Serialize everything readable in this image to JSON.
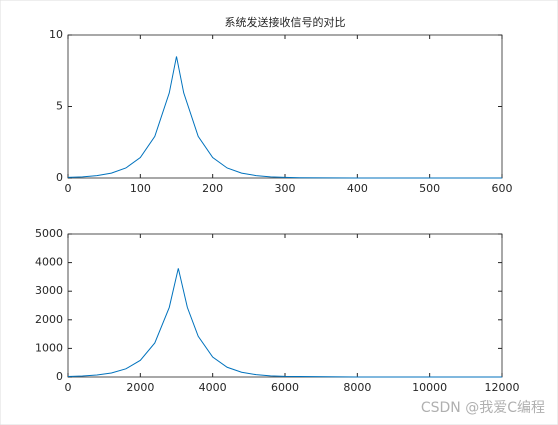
{
  "chart_data": [
    {
      "type": "line",
      "title": "系统发送接收信号的对比",
      "x": [
        0,
        20,
        40,
        60,
        80,
        100,
        120,
        140,
        150,
        160,
        180,
        200,
        220,
        240,
        260,
        280,
        300,
        320,
        400,
        500,
        600
      ],
      "series": [
        {
          "color": "#0072bd",
          "values": [
            0.04,
            0.08,
            0.17,
            0.34,
            0.7,
            1.43,
            2.91,
            5.95,
            8.5,
            5.95,
            2.91,
            1.43,
            0.7,
            0.34,
            0.17,
            0.08,
            0.04,
            0.02,
            0,
            0,
            0
          ]
        }
      ],
      "xlim": [
        0,
        600
      ],
      "xticks": [
        0,
        100,
        200,
        300,
        400,
        500,
        600
      ],
      "ylim": [
        0,
        10
      ],
      "yticks": [
        0,
        5,
        10
      ]
    },
    {
      "type": "line",
      "x": [
        0,
        400,
        800,
        1200,
        1600,
        2000,
        2400,
        2800,
        3050,
        3300,
        3600,
        4000,
        4400,
        4800,
        5200,
        5600,
        6000,
        8000,
        10000,
        12000
      ],
      "series": [
        {
          "color": "#0072bd",
          "values": [
            16,
            34,
            68,
            140,
            285,
            583,
            1190,
            2433,
            3800,
            2433,
            1423,
            697,
            341,
            167,
            82,
            40,
            20,
            0,
            0,
            0
          ]
        }
      ],
      "xlim": [
        0,
        12000
      ],
      "xticks": [
        0,
        2000,
        4000,
        6000,
        8000,
        10000,
        12000
      ],
      "ylim": [
        0,
        5000
      ],
      "yticks": [
        0,
        1000,
        2000,
        3000,
        4000,
        5000
      ]
    }
  ],
  "watermark": "CSDN @我爱C编程"
}
